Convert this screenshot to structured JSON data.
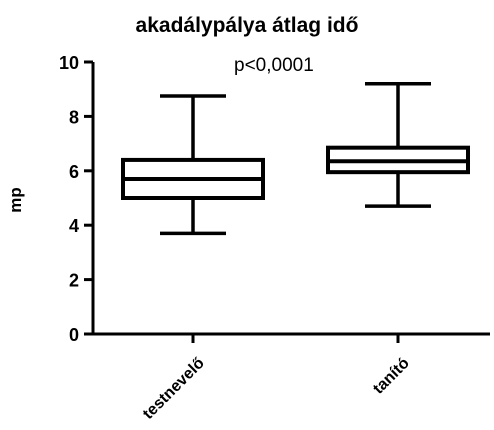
{
  "chart_data": {
    "type": "box",
    "title": "akadálypálya átlag idő",
    "xlabel": "",
    "ylabel": "mp",
    "annotation": "p<0,0001",
    "ylim": [
      0,
      10
    ],
    "yticks": [
      0,
      2,
      4,
      6,
      8,
      10
    ],
    "categories": [
      "testnevelő",
      "tanító"
    ],
    "boxes": [
      {
        "category": "testnevelő",
        "min": 3.7,
        "q1": 5.0,
        "median": 5.7,
        "q3": 6.4,
        "max": 8.75
      },
      {
        "category": "tanító",
        "min": 4.7,
        "q1": 5.95,
        "median": 6.35,
        "q3": 6.85,
        "max": 9.2
      }
    ],
    "grid": false,
    "colors": {
      "stroke": "#000000",
      "fill": "#ffffff"
    }
  }
}
